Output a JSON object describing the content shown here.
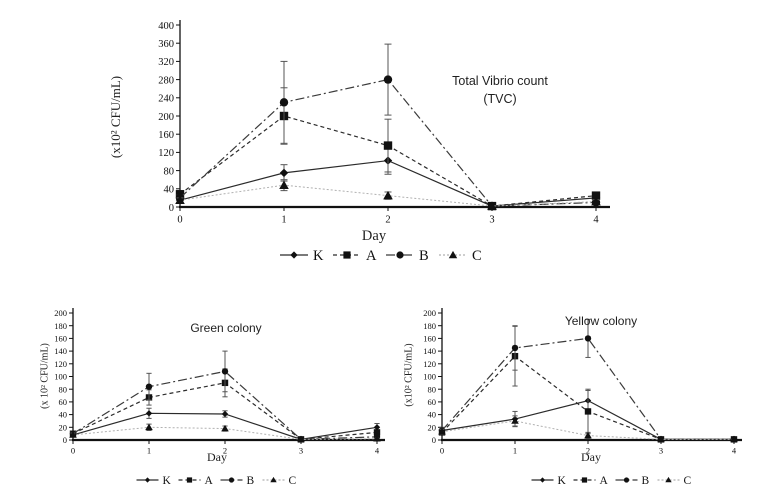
{
  "figure": {
    "background": "#ffffff",
    "axis_color": "#111111",
    "error_bar_color": "#555555",
    "text_color": "#1a1a1a"
  },
  "chart_data": [
    {
      "id": "tvc",
      "type": "line",
      "title": "Total Vibrio count (TVC)",
      "title_display": "Total Vibrio count\n(TVC)",
      "xlabel": "Day",
      "ylabel": "(x10² CFU/mL)",
      "x": [
        0,
        1,
        2,
        3,
        4
      ],
      "xlim": [
        0,
        4
      ],
      "ylim": [
        0,
        400
      ],
      "ytick_step": 40,
      "grid": false,
      "legend_position": "bottom",
      "legend": [
        "K",
        "A",
        "B",
        "C"
      ],
      "series": [
        {
          "name": "K",
          "marker": "diamond",
          "line": "solid",
          "color": "#2b2b2b",
          "values": [
            15,
            75,
            102,
            2,
            20
          ],
          "errors": [
            5,
            18,
            30,
            0,
            6
          ]
        },
        {
          "name": "A",
          "marker": "square",
          "line": "dashed",
          "color": "#2b2b2b",
          "values": [
            28,
            200,
            135,
            2,
            25
          ],
          "errors": [
            8,
            62,
            58,
            0,
            8
          ]
        },
        {
          "name": "B",
          "marker": "circle",
          "line": "dashdot",
          "color": "#3a3a3a",
          "values": [
            20,
            230,
            280,
            2,
            10
          ],
          "errors": [
            6,
            90,
            78,
            0,
            4
          ]
        },
        {
          "name": "C",
          "marker": "triangle",
          "line": "dotted",
          "color": "#b0b0b0",
          "values": [
            15,
            48,
            25,
            2,
            12
          ],
          "errors": [
            5,
            12,
            8,
            0,
            4
          ]
        }
      ]
    },
    {
      "id": "green",
      "type": "line",
      "title": "Green colony",
      "title_display": "Green colony",
      "xlabel": "Day",
      "ylabel": "(x 10² CFU/mL)",
      "x": [
        0,
        1,
        2,
        3,
        4
      ],
      "xlim": [
        0,
        4
      ],
      "ylim": [
        0,
        200
      ],
      "ytick_step": 20,
      "grid": false,
      "legend_position": "bottom",
      "legend": [
        "K",
        "A",
        "B",
        "C"
      ],
      "series": [
        {
          "name": "K",
          "marker": "diamond",
          "line": "solid",
          "color": "#2b2b2b",
          "values": [
            8,
            42,
            41,
            1,
            20
          ],
          "errors": [
            3,
            8,
            5,
            0,
            6
          ]
        },
        {
          "name": "A",
          "marker": "square",
          "line": "dashed",
          "color": "#2b2b2b",
          "values": [
            10,
            67,
            90,
            1,
            12
          ],
          "errors": [
            4,
            12,
            22,
            0,
            3
          ]
        },
        {
          "name": "B",
          "marker": "circle",
          "line": "dashdot",
          "color": "#3a3a3a",
          "values": [
            10,
            84,
            108,
            1,
            5
          ],
          "errors": [
            4,
            21,
            32,
            0,
            2
          ]
        },
        {
          "name": "C",
          "marker": "triangle",
          "line": "dotted",
          "color": "#b0b0b0",
          "values": [
            8,
            20,
            18,
            1,
            2
          ],
          "errors": [
            3,
            5,
            4,
            0,
            1
          ]
        }
      ]
    },
    {
      "id": "yellow",
      "type": "line",
      "title": "Yellow colony",
      "title_display": "Yellow  colony",
      "xlabel": "Day",
      "ylabel": "(x10² CFU/mL)",
      "x": [
        0,
        1,
        2,
        3,
        4
      ],
      "xlim": [
        0,
        4
      ],
      "ylim": [
        0,
        200
      ],
      "ytick_step": 20,
      "grid": false,
      "legend_position": "bottom",
      "legend": [
        "K",
        "A",
        "B",
        "C"
      ],
      "series": [
        {
          "name": "K",
          "marker": "diamond",
          "line": "solid",
          "color": "#2b2b2b",
          "values": [
            15,
            33,
            62,
            1,
            1
          ],
          "errors": [
            4,
            12,
            16,
            0,
            0
          ]
        },
        {
          "name": "A",
          "marker": "square",
          "line": "dashed",
          "color": "#2b2b2b",
          "values": [
            12,
            132,
            45,
            1,
            1
          ],
          "errors": [
            4,
            47,
            35,
            0,
            0
          ]
        },
        {
          "name": "B",
          "marker": "circle",
          "line": "dashdot",
          "color": "#3a3a3a",
          "values": [
            15,
            145,
            160,
            1,
            1
          ],
          "errors": [
            5,
            35,
            30,
            0,
            0
          ]
        },
        {
          "name": "C",
          "marker": "triangle",
          "line": "dotted",
          "color": "#b0b0b0",
          "values": [
            13,
            30,
            7,
            1,
            1
          ],
          "errors": [
            4,
            8,
            5,
            0,
            0
          ]
        }
      ]
    }
  ]
}
